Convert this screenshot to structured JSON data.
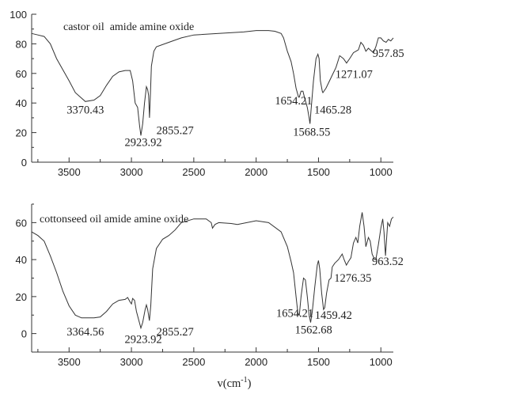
{
  "chart_data": [
    {
      "type": "line",
      "title": "castor oil  amide amine oxide",
      "xlabel": "",
      "ylabel": "",
      "xlim": [
        3800,
        900
      ],
      "ylim": [
        0,
        100
      ],
      "x_reversed": true,
      "xticks": [
        3500,
        3000,
        2500,
        2000,
        1500,
        1000
      ],
      "yticks": [
        0,
        20,
        40,
        60,
        80,
        100
      ],
      "grid": false,
      "series": [
        {
          "x": [
            3800,
            3750,
            3700,
            3650,
            3600,
            3500,
            3450,
            3370,
            3300,
            3250,
            3200,
            3150,
            3100,
            3050,
            3010,
            2990,
            2970,
            2950,
            2935,
            2924,
            2910,
            2895,
            2880,
            2870,
            2862,
            2855,
            2848,
            2840,
            2820,
            2800,
            2700,
            2600,
            2500,
            2300,
            2100,
            2000,
            1900,
            1850,
            1800,
            1780,
            1750,
            1720,
            1700,
            1680,
            1660,
            1654,
            1640,
            1625,
            1610,
            1590,
            1575,
            1568,
            1560,
            1540,
            1520,
            1505,
            1495,
            1485,
            1470,
            1465,
            1440,
            1400,
            1360,
            1330,
            1300,
            1275,
            1250,
            1220,
            1200,
            1180,
            1160,
            1140,
            1120,
            1100,
            1060,
            1040,
            1020,
            1000,
            980,
            958,
            940,
            920,
            900
          ],
          "y": [
            87,
            86,
            85,
            80,
            70,
            55,
            47,
            41,
            42,
            45,
            52,
            58,
            61,
            62,
            62,
            55,
            40,
            37,
            25,
            18,
            26,
            40,
            51,
            49,
            45,
            30,
            45,
            65,
            75,
            78,
            81,
            84,
            86,
            87,
            88,
            89,
            89,
            88.5,
            87,
            84,
            75,
            68,
            60,
            50,
            44,
            44,
            48,
            48,
            43,
            37,
            30,
            26,
            35,
            55,
            70,
            73,
            70,
            55,
            48,
            47,
            50,
            57,
            64,
            72,
            70,
            67,
            70,
            74,
            75,
            76,
            81,
            79,
            75,
            77,
            74,
            78,
            84,
            84,
            82,
            81,
            83,
            82,
            84
          ]
        }
      ],
      "annotations": [
        {
          "text": "3370.43",
          "x": 3370,
          "y": 33
        },
        {
          "text": "2923.92",
          "x": 2905,
          "y": 11
        },
        {
          "text": "2855.27",
          "x": 2650,
          "y": 19
        },
        {
          "text": "1654.21",
          "x": 1700,
          "y": 39
        },
        {
          "text": "1568.55",
          "x": 1555,
          "y": 18
        },
        {
          "text": "1465.28",
          "x": 1385,
          "y": 33
        },
        {
          "text": "1271.07",
          "x": 1215,
          "y": 57
        },
        {
          "text": "957.85",
          "x": 940,
          "y": 71
        }
      ]
    },
    {
      "type": "line",
      "title": "cottonseed oil amide amine oxide",
      "xlabel": "v(cm-1)",
      "ylabel": "",
      "xlim": [
        3800,
        900
      ],
      "ylim": [
        -10,
        70
      ],
      "x_reversed": true,
      "xticks": [
        3500,
        3000,
        2500,
        2000,
        1500,
        1000
      ],
      "yticks": [
        0,
        20,
        40,
        60
      ],
      "grid": false,
      "series": [
        {
          "x": [
            3800,
            3750,
            3700,
            3650,
            3600,
            3550,
            3500,
            3450,
            3400,
            3300,
            3250,
            3200,
            3150,
            3100,
            3050,
            3030,
            3010,
            3000,
            2990,
            2975,
            2960,
            2940,
            2924,
            2910,
            2890,
            2880,
            2870,
            2856,
            2845,
            2830,
            2800,
            2750,
            2700,
            2650,
            2600,
            2500,
            2400,
            2360,
            2350,
            2330,
            2300,
            2200,
            2150,
            2000,
            1900,
            1800,
            1750,
            1720,
            1700,
            1680,
            1665,
            1654,
            1640,
            1620,
            1605,
            1590,
            1575,
            1563,
            1550,
            1530,
            1510,
            1500,
            1490,
            1475,
            1460,
            1450,
            1435,
            1415,
            1400,
            1390,
            1370,
            1340,
            1310,
            1295,
            1276,
            1260,
            1240,
            1220,
            1200,
            1185,
            1170,
            1150,
            1135,
            1120,
            1100,
            1085,
            1070,
            1050,
            1040,
            1020,
            1000,
            985,
            975,
            963,
            955,
            945,
            930,
            915,
            900
          ],
          "y": [
            55,
            53,
            50,
            42,
            33,
            23,
            15,
            10,
            8.5,
            8.5,
            9,
            12,
            16,
            18,
            18.5,
            19.5,
            17,
            16,
            19,
            18,
            12,
            7,
            3,
            6,
            13,
            15.5,
            13,
            7,
            15,
            35,
            46,
            51,
            53,
            56,
            60,
            62,
            62,
            60,
            57,
            59,
            60,
            59.5,
            59,
            61,
            60,
            55,
            47,
            39,
            33,
            20,
            11,
            10,
            20,
            30,
            29,
            20,
            10,
            6,
            12,
            25,
            37,
            39.5,
            35,
            22,
            13,
            14,
            22,
            29,
            30,
            36,
            38,
            40,
            43,
            40,
            37,
            39,
            41,
            49,
            52,
            49,
            58,
            65.5,
            58,
            47,
            52,
            50,
            43,
            40,
            40,
            48,
            57,
            62,
            55,
            42,
            50,
            60,
            58,
            62,
            63
          ]
        }
      ],
      "annotations": [
        {
          "text": "3364.56",
          "x": 3370,
          "y": -1
        },
        {
          "text": "2923.92",
          "x": 2905,
          "y": -5
        },
        {
          "text": "2855.27",
          "x": 2650,
          "y": -1
        },
        {
          "text": "1654.21",
          "x": 1690,
          "y": 9
        },
        {
          "text": "1562.68",
          "x": 1540,
          "y": 0
        },
        {
          "text": "1459.42",
          "x": 1380,
          "y": 8
        },
        {
          "text": "1276.35",
          "x": 1225,
          "y": 28
        },
        {
          "text": "963.52",
          "x": 945,
          "y": 37
        }
      ]
    }
  ],
  "xlabel_parts": {
    "base": "v(cm",
    "sup": "-1",
    "close": ")"
  },
  "colors": {
    "line": "#333333",
    "background": "#ffffff"
  }
}
